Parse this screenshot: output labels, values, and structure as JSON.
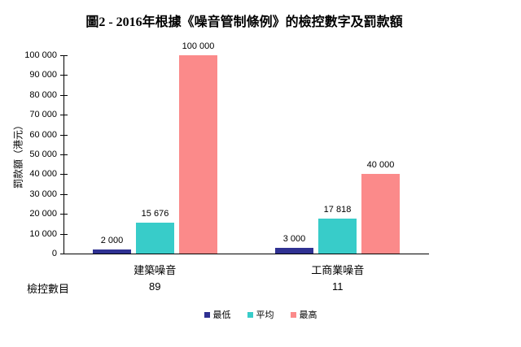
{
  "title": "圖2 - 2016年根據《噪音管制條例》的檢控數字及罰款額",
  "chart_data": {
    "type": "bar",
    "title": "圖2 - 2016年根據《噪音管制條例》的檢控數字及罰款額",
    "ylabel": "罰款額（港元）",
    "xlabel": "",
    "ylim": [
      0,
      100000
    ],
    "ytick_step": 10000,
    "yticks": [
      "0",
      "10 000",
      "20 000",
      "30 000",
      "40 000",
      "50 000",
      "60 000",
      "70 000",
      "80 000",
      "90 000",
      "100 000"
    ],
    "grid": false,
    "legend_position": "bottom",
    "categories": [
      "建築噪音",
      "工商業噪音"
    ],
    "series": [
      {
        "name": "最低",
        "color": "#2F3192",
        "values": [
          2000,
          3000
        ],
        "value_labels": [
          "2 000",
          "3 000"
        ]
      },
      {
        "name": "平均",
        "color": "#38CCC9",
        "values": [
          15676,
          17818
        ],
        "value_labels": [
          "15 676",
          "17 818"
        ]
      },
      {
        "name": "最高",
        "color": "#FB8A8A",
        "values": [
          100000,
          40000
        ],
        "value_labels": [
          "100 000",
          "40 000"
        ]
      }
    ],
    "counts_row": {
      "label": "檢控數目",
      "values": [
        "89",
        "11"
      ]
    }
  }
}
